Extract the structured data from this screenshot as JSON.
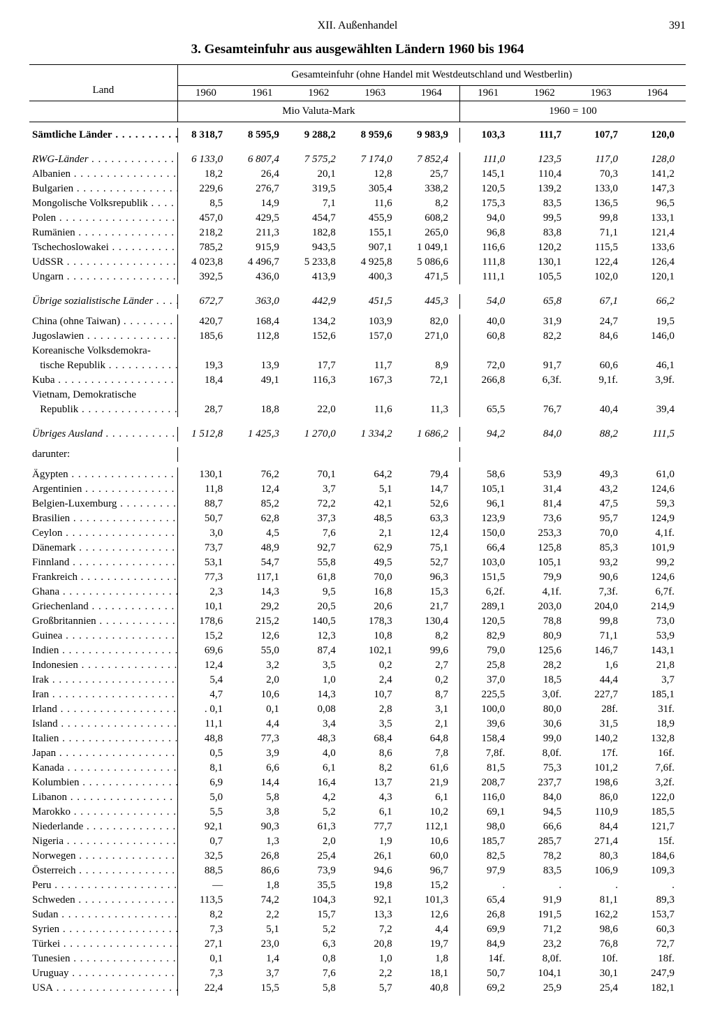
{
  "header": {
    "section": "XII. Außenhandel",
    "page": "391",
    "title": "3. Gesamteinfuhr aus ausgewählten Ländern 1960 bis 1964"
  },
  "table": {
    "col_land": "Land",
    "group_header": "Gesamteinfuhr (ohne Handel mit Westdeutschland und Westberlin)",
    "years": [
      "1960",
      "1961",
      "1962",
      "1963",
      "1964",
      "1961",
      "1962",
      "1963",
      "1964"
    ],
    "sub_left": "Mio Valuta-Mark",
    "sub_right": "1960 = 100",
    "darunter": "darunter:",
    "rows": [
      {
        "l": "Sämtliche Länder",
        "cls": "bold dots",
        "v": [
          "8 318,7",
          "8 595,9",
          "9 288,2",
          "8 959,6",
          "9 983,9",
          "103,3",
          "111,7",
          "107,7",
          "120,0"
        ]
      },
      {
        "spacer": true
      },
      {
        "l": "RWG-Länder",
        "cls": "ital dots",
        "v": [
          "6 133,0",
          "6 807,4",
          "7 575,2",
          "7 174,0",
          "7 852,4",
          "111,0",
          "123,5",
          "117,0",
          "128,0"
        ]
      },
      {
        "l": "Albanien",
        "cls": "dots",
        "v": [
          "18,2",
          "26,4",
          "20,1",
          "12,8",
          "25,7",
          "145,1",
          "110,4",
          "70,3",
          "141,2"
        ]
      },
      {
        "l": "Bulgarien",
        "cls": "dots",
        "v": [
          "229,6",
          "276,7",
          "319,5",
          "305,4",
          "338,2",
          "120,5",
          "139,2",
          "133,0",
          "147,3"
        ]
      },
      {
        "l": "Mongolische Volksrepublik",
        "cls": "dots",
        "v": [
          "8,5",
          "14,9",
          "7,1",
          "11,6",
          "8,2",
          "175,3",
          "83,5",
          "136,5",
          "96,5"
        ]
      },
      {
        "l": "Polen",
        "cls": "dots",
        "v": [
          "457,0",
          "429,5",
          "454,7",
          "455,9",
          "608,2",
          "94,0",
          "99,5",
          "99,8",
          "133,1"
        ]
      },
      {
        "l": "Rumänien",
        "cls": "dots",
        "v": [
          "218,2",
          "211,3",
          "182,8",
          "155,1",
          "265,0",
          "96,8",
          "83,8",
          "71,1",
          "121,4"
        ]
      },
      {
        "l": "Tschechoslowakei",
        "cls": "dots",
        "v": [
          "785,2",
          "915,9",
          "943,5",
          "907,1",
          "1 049,1",
          "116,6",
          "120,2",
          "115,5",
          "133,6"
        ]
      },
      {
        "l": "UdSSR",
        "cls": "dots",
        "v": [
          "4 023,8",
          "4 496,7",
          "5 233,8",
          "4 925,8",
          "5 086,6",
          "111,8",
          "130,1",
          "122,4",
          "126,4"
        ]
      },
      {
        "l": "Ungarn",
        "cls": "dots",
        "v": [
          "392,5",
          "436,0",
          "413,9",
          "400,3",
          "471,5",
          "111,1",
          "105,5",
          "102,0",
          "120,1"
        ]
      },
      {
        "spacer": true
      },
      {
        "l": "Übrige sozialistische Länder",
        "cls": "ital dots",
        "v": [
          "672,7",
          "363,0",
          "442,9",
          "451,5",
          "445,3",
          "54,0",
          "65,8",
          "67,1",
          "66,2"
        ]
      },
      {
        "tiny": true
      },
      {
        "l": "China (ohne Taiwan)",
        "cls": "dots",
        "v": [
          "420,7",
          "168,4",
          "134,2",
          "103,9",
          "82,0",
          "40,0",
          "31,9",
          "24,7",
          "19,5"
        ]
      },
      {
        "l": "Jugoslawien",
        "cls": "dots",
        "v": [
          "185,6",
          "112,8",
          "152,6",
          "157,0",
          "271,0",
          "60,8",
          "82,2",
          "84,6",
          "146,0"
        ]
      },
      {
        "l": "Koreanische Volksdemokra-",
        "cls": "",
        "v": [
          "",
          "",
          "",
          "",
          "",
          "",
          "",
          "",
          ""
        ]
      },
      {
        "l": "   tische Republik",
        "cls": "dots",
        "v": [
          "19,3",
          "13,9",
          "17,7",
          "11,7",
          "8,9",
          "72,0",
          "91,7",
          "60,6",
          "46,1"
        ]
      },
      {
        "l": "Kuba",
        "cls": "dots",
        "v": [
          "18,4",
          "49,1",
          "116,3",
          "167,3",
          "72,1",
          "266,8",
          "6,3f.",
          "9,1f.",
          "3,9f."
        ]
      },
      {
        "l": "Vietnam, Demokratische",
        "cls": "",
        "v": [
          "",
          "",
          "",
          "",
          "",
          "",
          "",
          "",
          ""
        ]
      },
      {
        "l": "   Republik",
        "cls": "dots",
        "v": [
          "28,7",
          "18,8",
          "22,0",
          "11,6",
          "11,3",
          "65,5",
          "76,7",
          "40,4",
          "39,4"
        ]
      },
      {
        "spacer": true
      },
      {
        "l": "Übriges Ausland",
        "cls": "ital dots",
        "v": [
          "1 512,8",
          "1 425,3",
          "1 270,0",
          "1 334,2",
          "1 686,2",
          "94,2",
          "84,0",
          "88,2",
          "111,5"
        ]
      },
      {
        "tiny": true
      },
      {
        "darunter": true
      },
      {
        "tiny": true
      },
      {
        "l": "Ägypten",
        "cls": "dots",
        "v": [
          "130,1",
          "76,2",
          "70,1",
          "64,2",
          "79,4",
          "58,6",
          "53,9",
          "49,3",
          "61,0"
        ]
      },
      {
        "l": "Argentinien",
        "cls": "dots",
        "v": [
          "11,8",
          "12,4",
          "3,7",
          "5,1",
          "14,7",
          "105,1",
          "31,4",
          "43,2",
          "124,6"
        ]
      },
      {
        "l": "Belgien-Luxemburg",
        "cls": "dots",
        "v": [
          "88,7",
          "85,2",
          "72,2",
          "42,1",
          "52,6",
          "96,1",
          "81,4",
          "47,5",
          "59,3"
        ]
      },
      {
        "l": "Brasilien",
        "cls": "dots",
        "v": [
          "50,7",
          "62,8",
          "37,3",
          "48,5",
          "63,3",
          "123,9",
          "73,6",
          "95,7",
          "124,9"
        ]
      },
      {
        "l": "Ceylon",
        "cls": "dots",
        "v": [
          "3,0",
          "4,5",
          "7,6",
          "2,1",
          "12,4",
          "150,0",
          "253,3",
          "70,0",
          "4,1f."
        ]
      },
      {
        "l": "Dänemark",
        "cls": "dots",
        "v": [
          "73,7",
          "48,9",
          "92,7",
          "62,9",
          "75,1",
          "66,4",
          "125,8",
          "85,3",
          "101,9"
        ]
      },
      {
        "l": "Finnland",
        "cls": "dots",
        "v": [
          "53,1",
          "54,7",
          "55,8",
          "49,5",
          "52,7",
          "103,0",
          "105,1",
          "93,2",
          "99,2"
        ]
      },
      {
        "l": "Frankreich",
        "cls": "dots",
        "v": [
          "77,3",
          "117,1",
          "61,8",
          "70,0",
          "96,3",
          "151,5",
          "79,9",
          "90,6",
          "124,6"
        ]
      },
      {
        "l": "Ghana",
        "cls": "dots",
        "v": [
          "2,3",
          "14,3",
          "9,5",
          "16,8",
          "15,3",
          "6,2f.",
          "4,1f.",
          "7,3f.",
          "6,7f."
        ]
      },
      {
        "l": "Griechenland",
        "cls": "dots",
        "v": [
          "10,1",
          "29,2",
          "20,5",
          "20,6",
          "21,7",
          "289,1",
          "203,0",
          "204,0",
          "214,9"
        ]
      },
      {
        "l": "Großbritannien",
        "cls": "dots",
        "v": [
          "178,6",
          "215,2",
          "140,5",
          "178,3",
          "130,4",
          "120,5",
          "78,8",
          "99,8",
          "73,0"
        ]
      },
      {
        "l": "Guinea",
        "cls": "dots",
        "v": [
          "15,2",
          "12,6",
          "12,3",
          "10,8",
          "8,2",
          "82,9",
          "80,9",
          "71,1",
          "53,9"
        ]
      },
      {
        "l": "Indien",
        "cls": "dots",
        "v": [
          "69,6",
          "55,0",
          "87,4",
          "102,1",
          "99,6",
          "79,0",
          "125,6",
          "146,7",
          "143,1"
        ]
      },
      {
        "l": "Indonesien",
        "cls": "dots",
        "v": [
          "12,4",
          "3,2",
          "3,5",
          "0,2",
          "2,7",
          "25,8",
          "28,2",
          "1,6",
          "21,8"
        ]
      },
      {
        "l": "Irak",
        "cls": "dots",
        "v": [
          "5,4",
          "2,0",
          "1,0",
          "2,4",
          "0,2",
          "37,0",
          "18,5",
          "44,4",
          "3,7"
        ]
      },
      {
        "l": "Iran",
        "cls": "dots",
        "v": [
          "4,7",
          "10,6",
          "14,3",
          "10,7",
          "8,7",
          "225,5",
          "3,0f.",
          "227,7",
          "185,1"
        ]
      },
      {
        "l": "Irland",
        "cls": "dots",
        "v": [
          ". 0,1",
          "0,1",
          "0,08",
          "2,8",
          "3,1",
          "100,0",
          "80,0",
          "28f.",
          "31f."
        ]
      },
      {
        "l": "Island",
        "cls": "dots",
        "v": [
          "11,1",
          "4,4",
          "3,4",
          "3,5",
          "2,1",
          "39,6",
          "30,6",
          "31,5",
          "18,9"
        ]
      },
      {
        "l": "Italien",
        "cls": "dots",
        "v": [
          "48,8",
          "77,3",
          "48,3",
          "68,4",
          "64,8",
          "158,4",
          "99,0",
          "140,2",
          "132,8"
        ]
      },
      {
        "l": "Japan",
        "cls": "dots",
        "v": [
          "0,5",
          "3,9",
          "4,0",
          "8,6",
          "7,8",
          "7,8f.",
          "8,0f.",
          "17f.",
          "16f."
        ]
      },
      {
        "l": "Kanada",
        "cls": "dots",
        "v": [
          "8,1",
          "6,6",
          "6,1",
          "8,2",
          "61,6",
          "81,5",
          "75,3",
          "101,2",
          "7,6f."
        ]
      },
      {
        "l": "Kolumbien",
        "cls": "dots",
        "v": [
          "6,9",
          "14,4",
          "16,4",
          "13,7",
          "21,9",
          "208,7",
          "237,7",
          "198,6",
          "3,2f."
        ]
      },
      {
        "l": "Libanon",
        "cls": "dots",
        "v": [
          "5,0",
          "5,8",
          "4,2",
          "4,3",
          "6,1",
          "116,0",
          "84,0",
          "86,0",
          "122,0"
        ]
      },
      {
        "l": "Marokko",
        "cls": "dots",
        "v": [
          "5,5",
          "3,8",
          "5,2",
          "6,1",
          "10,2",
          "69,1",
          "94,5",
          "110,9",
          "185,5"
        ]
      },
      {
        "l": "Niederlande",
        "cls": "dots",
        "v": [
          "92,1",
          "90,3",
          "61,3",
          "77,7",
          "112,1",
          "98,0",
          "66,6",
          "84,4",
          "121,7"
        ]
      },
      {
        "l": "Nigeria",
        "cls": "dots",
        "v": [
          "0,7",
          "1,3",
          "2,0",
          "1,9",
          "10,6",
          "185,7",
          "285,7",
          "271,4",
          "15f."
        ]
      },
      {
        "l": "Norwegen",
        "cls": "dots",
        "v": [
          "32,5",
          "26,8",
          "25,4",
          "26,1",
          "60,0",
          "82,5",
          "78,2",
          "80,3",
          "184,6"
        ]
      },
      {
        "l": "Österreich",
        "cls": "dots",
        "v": [
          "88,5",
          "86,6",
          "73,9",
          "94,6",
          "96,7",
          "97,9",
          "83,5",
          "106,9",
          "109,3"
        ]
      },
      {
        "l": "Peru",
        "cls": "dots",
        "v": [
          "—",
          "1,8",
          "35,5",
          "19,8",
          "15,2",
          ".",
          ".",
          ".",
          "."
        ]
      },
      {
        "l": "Schweden",
        "cls": "dots",
        "v": [
          "113,5",
          "74,2",
          "104,3",
          "92,1",
          "101,3",
          "65,4",
          "91,9",
          "81,1",
          "89,3"
        ]
      },
      {
        "l": "Sudan",
        "cls": "dots",
        "v": [
          "8,2",
          "2,2",
          "15,7",
          "13,3",
          "12,6",
          "26,8",
          "191,5",
          "162,2",
          "153,7"
        ]
      },
      {
        "l": "Syrien",
        "cls": "dots",
        "v": [
          "7,3",
          "5,1",
          "5,2",
          "7,2",
          "4,4",
          "69,9",
          "71,2",
          "98,6",
          "60,3"
        ]
      },
      {
        "l": "Türkei",
        "cls": "dots",
        "v": [
          "27,1",
          "23,0",
          "6,3",
          "20,8",
          "19,7",
          "84,9",
          "23,2",
          "76,8",
          "72,7"
        ]
      },
      {
        "l": "Tunesien",
        "cls": "dots",
        "v": [
          "0,1",
          "1,4",
          "0,8",
          "1,0",
          "1,8",
          "14f.",
          "8,0f.",
          "10f.",
          "18f."
        ]
      },
      {
        "l": "Uruguay",
        "cls": "dots",
        "v": [
          "7,3",
          "3,7",
          "7,6",
          "2,2",
          "18,1",
          "50,7",
          "104,1",
          "30,1",
          "247,9"
        ]
      },
      {
        "l": "USA",
        "cls": "dots",
        "v": [
          "22,4",
          "15,5",
          "5,8",
          "5,7",
          "40,8",
          "69,2",
          "25,9",
          "25,4",
          "182,1"
        ]
      }
    ]
  }
}
